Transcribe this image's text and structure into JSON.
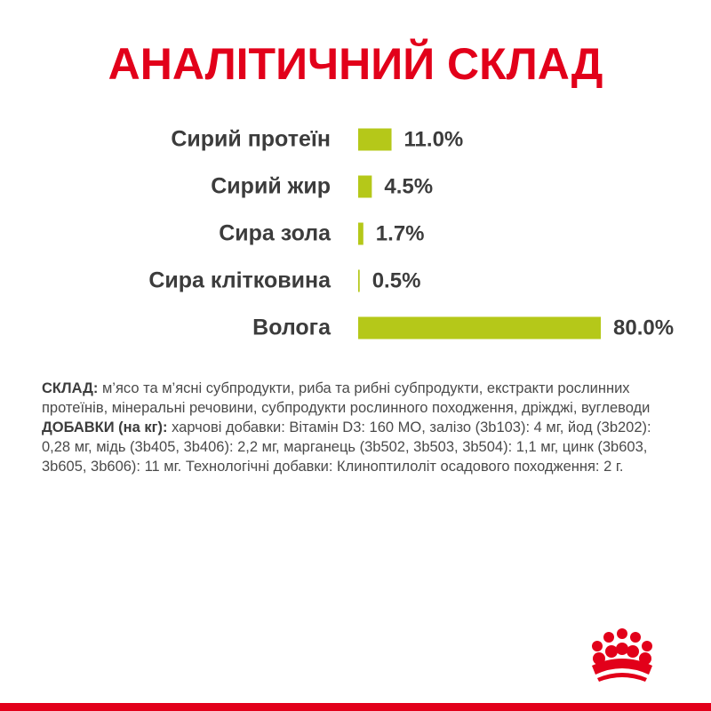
{
  "chart_data": {
    "type": "bar",
    "orientation": "horizontal",
    "title": "АНАЛІТИЧНИЙ СКЛАД",
    "categories": [
      "Сирий протеїн",
      "Сирий жир",
      "Сира зола",
      "Сира клітковина",
      "Волога"
    ],
    "values": [
      11.0,
      4.5,
      1.7,
      0.5,
      80.0
    ],
    "value_labels": [
      "11.0%",
      "4.5%",
      "1.7%",
      "0.5%",
      "80.0%"
    ],
    "color": "#b5c819"
  },
  "composition": {
    "label": "СКЛАД:",
    "text": "м’ясо та м’ясні субпродукти, риба та рибні субпродукти, екстракти рослинних протеїнів, мінеральні речовини, субпродукти рослинного походження, дріжджі, вуглеводи"
  },
  "additives": {
    "label": "ДОБАВКИ (на кг):",
    "text": "харчові добавки: Вітамін D3: 160 МО, залізо (3b103): 4 мг, йод (3b202): 0,28 мг, мідь (3b405, 3b406): 2,2 мг, марганець (3b502, 3b503, 3b504): 1,1 мг, цинк (3b603, 3b605, 3b606): 11 мг. Технологічні добавки: Клиноптилоліт осадового походження: 2 г."
  }
}
